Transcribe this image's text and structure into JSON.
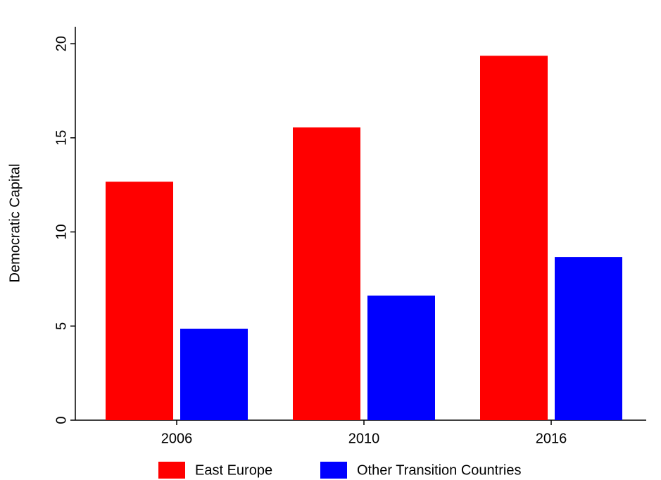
{
  "chart_data": {
    "type": "bar",
    "categories": [
      "2006",
      "2010",
      "2016"
    ],
    "series": [
      {
        "name": "East Europe",
        "color": "#ff0000",
        "values": [
          12.67,
          15.55,
          19.36
        ]
      },
      {
        "name": "Other Transition Countries",
        "color": "#0000ff",
        "values": [
          4.86,
          6.62,
          8.67
        ]
      }
    ],
    "y_label": "Democratic Capital",
    "ylim": [
      0,
      20.9
    ],
    "yticks": [
      0,
      5,
      10,
      15,
      20
    ]
  }
}
